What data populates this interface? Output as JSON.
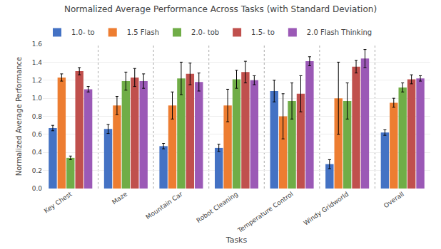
{
  "chart_data": {
    "type": "bar",
    "title": "Normalized Average Performance Across Tasks (with Standard Deviation)",
    "xlabel": "Tasks",
    "ylabel": "Normalized Average Performance",
    "categories": [
      "Key Chest",
      "Maze",
      "Mountain Car",
      "Robot Cleaning",
      "Temperature Control",
      "Windy Gridworld",
      "Overall"
    ],
    "series": [
      {
        "name": "1.0- to",
        "color": "#4472C4",
        "values": [
          0.67,
          0.66,
          0.47,
          0.45,
          1.08,
          0.27,
          0.62
        ],
        "errors": [
          0.03,
          0.05,
          0.03,
          0.04,
          0.12,
          0.05,
          0.03
        ]
      },
      {
        "name": "1.5 Flash",
        "color": "#ED7D31",
        "values": [
          1.23,
          0.92,
          0.92,
          0.92,
          0.8,
          1.0,
          0.95
        ],
        "errors": [
          0.04,
          0.1,
          0.15,
          0.18,
          0.25,
          0.4,
          0.05
        ]
      },
      {
        "name": "2.0- tob",
        "color": "#70AD47",
        "values": [
          0.34,
          1.19,
          1.22,
          1.21,
          0.97,
          0.97,
          1.12
        ],
        "errors": [
          0.02,
          0.1,
          0.18,
          0.1,
          0.2,
          0.2,
          0.05
        ]
      },
      {
        "name": "1.5- to",
        "color": "#C0504D",
        "values": [
          1.3,
          1.23,
          1.27,
          1.29,
          1.05,
          1.35,
          1.21
        ],
        "errors": [
          0.04,
          0.1,
          0.12,
          0.12,
          0.2,
          0.07,
          0.05
        ]
      },
      {
        "name": "2.0 Flash Thinking",
        "color": "#9B59B6",
        "values": [
          1.1,
          1.19,
          1.18,
          1.2,
          1.41,
          1.44,
          1.22
        ],
        "errors": [
          0.03,
          0.08,
          0.1,
          0.05,
          0.05,
          0.1,
          0.03
        ]
      }
    ],
    "ylim": [
      0.0,
      1.6
    ],
    "yticks": [
      {
        "value": 0,
        "label": "0.0"
      },
      0.2,
      0.4,
      0.6,
      0.8,
      {
        "value": 1,
        "label": "1.0"
      },
      1.2,
      1.4,
      1.6
    ],
    "grid": true,
    "legend": "upper left"
  }
}
